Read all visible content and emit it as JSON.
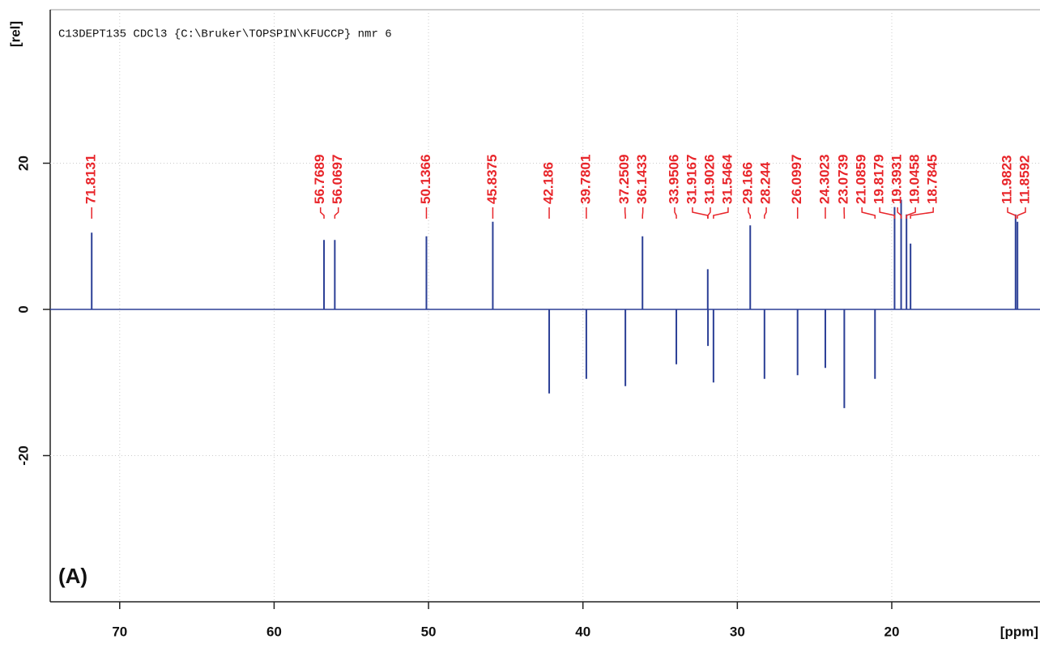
{
  "chart_data": {
    "type": "stick",
    "title": "C13DEPT135 CDCl3 {C:\\Bruker\\TOPSPIN\\KFUCCP} nmr 6",
    "panel_label": "(A)",
    "x_label": "[ppm]",
    "y_label": "[rel]",
    "x": [
      71.8131,
      56.7689,
      56.0697,
      50.1366,
      45.8375,
      42.186,
      39.7801,
      37.2509,
      36.1433,
      33.9506,
      31.9167,
      31.9026,
      31.5464,
      29.166,
      28.244,
      26.0997,
      24.3023,
      23.0739,
      21.0859,
      19.8179,
      19.3931,
      19.0458,
      18.7845,
      11.9823,
      11.8592
    ],
    "values": [
      10.5,
      9.5,
      9.5,
      10,
      12,
      -11.5,
      -9.5,
      -10.5,
      10,
      -7.5,
      5.5,
      -5,
      -10,
      11.5,
      -9.5,
      -9,
      -8,
      -13.5,
      -9.5,
      14,
      15,
      13,
      9,
      13,
      12
    ],
    "color": "#2b3f96",
    "label_color": "#e8252a",
    "xlim": [
      74.5,
      10.4
    ],
    "ylim": [
      -40,
      41
    ],
    "xticks": [
      70,
      60,
      50,
      40,
      30,
      20
    ],
    "yticks": [
      -20,
      0,
      20
    ],
    "grid": true
  }
}
